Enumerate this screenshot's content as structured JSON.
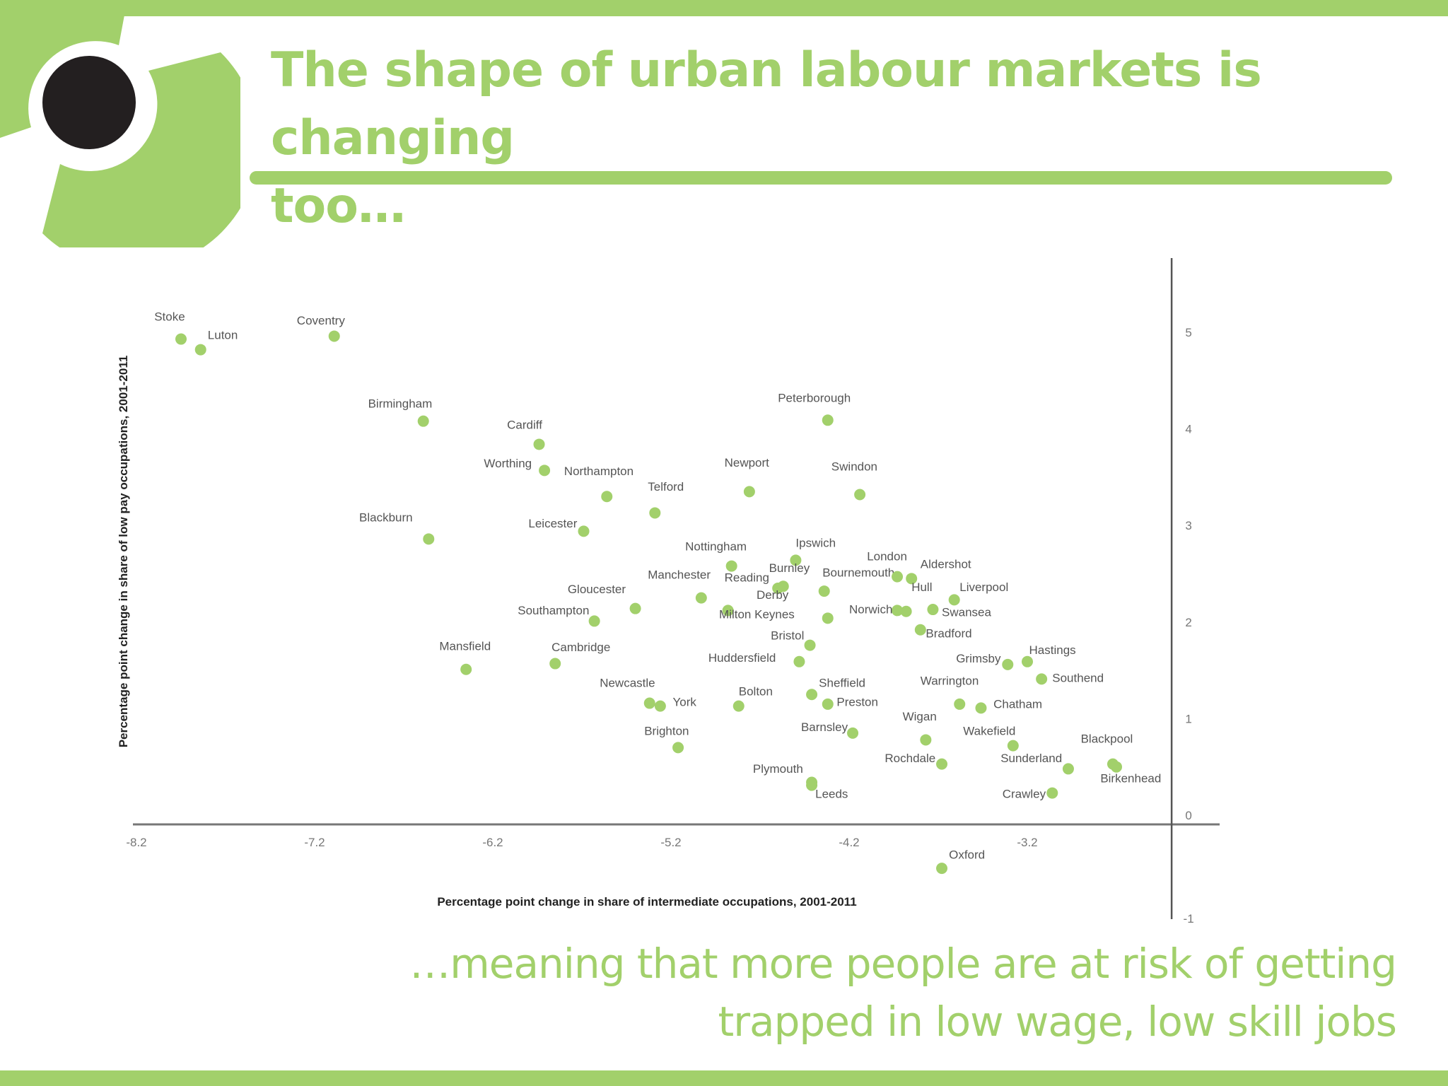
{
  "slide": {
    "title": "The shape of urban labour markets is changing too…",
    "title_line1": "The shape of urban labour markets is changing",
    "title_line2": "too…",
    "caption_line1": "…meaning that more people are at risk of getting",
    "caption_line2": "trapped in low wage, low skill jobs",
    "colors": {
      "accent": "#a2d06b",
      "logo_dot": "#231f20",
      "point": "#a2d06b",
      "axis": "#777777"
    },
    "logo_icon": "circle-target-logo-icon"
  },
  "chart_data": {
    "type": "scatter",
    "title": "",
    "xlabel": "Percentage point change in share of intermediate occupations, 2001-2011",
    "ylabel": "Percentage point change in share of low pay occupations, 2001-2011",
    "xlim": [
      -8.2,
      -2.0
    ],
    "ylim": [
      -1,
      5.5
    ],
    "x_ticks": [
      -8.2,
      -7.2,
      -6.2,
      -5.2,
      -4.2,
      -3.2
    ],
    "x_tick_labels": [
      "-8.2",
      "-7.2",
      "-6.2",
      "-5.2",
      "-4.2",
      "-3.2"
    ],
    "y_ticks": [
      5,
      4,
      3,
      2,
      1,
      0,
      -1
    ],
    "y_tick_labels": [
      "5",
      "4",
      "3",
      "2",
      "1",
      "0",
      "-1"
    ],
    "grid": false,
    "legend": null,
    "y_axis_position_x": -2.39,
    "points": [
      {
        "label": "Stoke",
        "x": -7.95,
        "y": 4.93,
        "lx": -8.1,
        "ly": 5.12
      },
      {
        "label": "Luton",
        "x": -7.84,
        "y": 4.82,
        "lx": -7.8,
        "ly": 4.93
      },
      {
        "label": "Coventry",
        "x": -7.09,
        "y": 4.96,
        "lx": -7.3,
        "ly": 5.08
      },
      {
        "label": "Birmingham",
        "x": -6.59,
        "y": 4.08,
        "lx": -6.9,
        "ly": 4.22
      },
      {
        "label": "Cardiff",
        "x": -5.94,
        "y": 3.84,
        "lx": -6.12,
        "ly": 4.0
      },
      {
        "label": "Worthing",
        "x": -5.91,
        "y": 3.57,
        "lx": -6.25,
        "ly": 3.6
      },
      {
        "label": "Northampton",
        "x": -5.56,
        "y": 3.3,
        "lx": -5.8,
        "ly": 3.52
      },
      {
        "label": "Telford",
        "x": -5.29,
        "y": 3.13,
        "lx": -5.33,
        "ly": 3.36
      },
      {
        "label": "Blackburn",
        "x": -6.56,
        "y": 2.86,
        "lx": -6.95,
        "ly": 3.04
      },
      {
        "label": "Leicester",
        "x": -5.69,
        "y": 2.94,
        "lx": -6.0,
        "ly": 2.98
      },
      {
        "label": "Newport",
        "x": -4.76,
        "y": 3.35,
        "lx": -4.9,
        "ly": 3.61
      },
      {
        "label": "Peterborough",
        "x": -4.32,
        "y": 4.09,
        "lx": -4.6,
        "ly": 4.28
      },
      {
        "label": "Swindon",
        "x": -4.14,
        "y": 3.32,
        "lx": -4.3,
        "ly": 3.57
      },
      {
        "label": "Nottingham",
        "x": -4.86,
        "y": 2.58,
        "lx": -5.12,
        "ly": 2.74
      },
      {
        "label": "Ipswich",
        "x": -4.5,
        "y": 2.64,
        "lx": -4.5,
        "ly": 2.78
      },
      {
        "label": "Burnley",
        "x": -4.57,
        "y": 2.37,
        "lx": -4.65,
        "ly": 2.52
      },
      {
        "label": "Reading",
        "x": -4.6,
        "y": 2.35,
        "lx": -4.9,
        "ly": 2.42
      },
      {
        "label": "Manchester",
        "x": -5.03,
        "y": 2.25,
        "lx": -5.33,
        "ly": 2.45
      },
      {
        "label": "Bournemouth",
        "x": -4.34,
        "y": 2.32,
        "lx": -4.35,
        "ly": 2.47
      },
      {
        "label": "Derby",
        "x": -4.88,
        "y": 2.12,
        "lx": -4.72,
        "ly": 2.24
      },
      {
        "label": "London",
        "x": -3.93,
        "y": 2.47,
        "lx": -4.1,
        "ly": 2.64
      },
      {
        "label": "Aldershot",
        "x": -3.85,
        "y": 2.45,
        "lx": -3.8,
        "ly": 2.56
      },
      {
        "label": "Hull",
        "x": -3.88,
        "y": 2.11,
        "lx": -3.85,
        "ly": 2.32
      },
      {
        "label": "Liverpool",
        "x": -3.61,
        "y": 2.23,
        "lx": -3.58,
        "ly": 2.32
      },
      {
        "label": "Swansea",
        "x": -3.73,
        "y": 2.13,
        "lx": -3.68,
        "ly": 2.06
      },
      {
        "label": "Norwich",
        "x": -3.93,
        "y": 2.12,
        "lx": -4.2,
        "ly": 2.09
      },
      {
        "label": "Milton Keynes",
        "x": -4.32,
        "y": 2.04,
        "lx": -4.93,
        "ly": 2.04
      },
      {
        "label": "Gloucester",
        "x": -5.4,
        "y": 2.14,
        "lx": -5.78,
        "ly": 2.3
      },
      {
        "label": "Southampton",
        "x": -5.63,
        "y": 2.01,
        "lx": -6.06,
        "ly": 2.08
      },
      {
        "label": "Bradford",
        "x": -3.8,
        "y": 1.92,
        "lx": -3.77,
        "ly": 1.84
      },
      {
        "label": "Bristol",
        "x": -4.42,
        "y": 1.76,
        "lx": -4.64,
        "ly": 1.82
      },
      {
        "label": "Huddersfield",
        "x": -4.48,
        "y": 1.59,
        "lx": -4.99,
        "ly": 1.59
      },
      {
        "label": "Mansfield",
        "x": -6.35,
        "y": 1.51,
        "lx": -6.5,
        "ly": 1.71
      },
      {
        "label": "Cambridge",
        "x": -5.85,
        "y": 1.57,
        "lx": -5.87,
        "ly": 1.7
      },
      {
        "label": "Grimsby",
        "x": -3.31,
        "y": 1.56,
        "lx": -3.6,
        "ly": 1.58
      },
      {
        "label": "Hastings",
        "x": -3.2,
        "y": 1.59,
        "lx": -3.19,
        "ly": 1.67
      },
      {
        "label": "Southend",
        "x": -3.12,
        "y": 1.41,
        "lx": -3.06,
        "ly": 1.38
      },
      {
        "label": "Newcastle",
        "x": -5.32,
        "y": 1.16,
        "lx": -5.6,
        "ly": 1.33
      },
      {
        "label": "York",
        "x": -5.26,
        "y": 1.13,
        "lx": -5.19,
        "ly": 1.13
      },
      {
        "label": "Bolton",
        "x": -4.82,
        "y": 1.13,
        "lx": -4.82,
        "ly": 1.24
      },
      {
        "label": "Sheffield",
        "x": -4.41,
        "y": 1.25,
        "lx": -4.37,
        "ly": 1.33
      },
      {
        "label": "Preston",
        "x": -4.32,
        "y": 1.15,
        "lx": -4.27,
        "ly": 1.13
      },
      {
        "label": "Warrington",
        "x": -3.58,
        "y": 1.15,
        "lx": -3.8,
        "ly": 1.35
      },
      {
        "label": "Chatham",
        "x": -3.46,
        "y": 1.11,
        "lx": -3.39,
        "ly": 1.11
      },
      {
        "label": "Barnsley",
        "x": -4.18,
        "y": 0.85,
        "lx": -4.47,
        "ly": 0.87
      },
      {
        "label": "Wigan",
        "x": -3.77,
        "y": 0.78,
        "lx": -3.9,
        "ly": 0.98
      },
      {
        "label": "Wakefield",
        "x": -3.28,
        "y": 0.72,
        "lx": -3.56,
        "ly": 0.83
      },
      {
        "label": "Brighton",
        "x": -5.16,
        "y": 0.7,
        "lx": -5.35,
        "ly": 0.83
      },
      {
        "label": "Rochdale",
        "x": -3.68,
        "y": 0.53,
        "lx": -4.0,
        "ly": 0.55
      },
      {
        "label": "Sunderland",
        "x": -2.97,
        "y": 0.48,
        "lx": -3.35,
        "ly": 0.55
      },
      {
        "label": "Blackpool",
        "x": -2.72,
        "y": 0.53,
        "lx": -2.9,
        "ly": 0.75
      },
      {
        "label": "Birkenhead",
        "x": -2.7,
        "y": 0.5,
        "lx": -2.79,
        "ly": 0.34
      },
      {
        "label": "Plymouth",
        "x": -4.41,
        "y": 0.34,
        "lx": -4.74,
        "ly": 0.44
      },
      {
        "label": "Leeds",
        "x": -4.41,
        "y": 0.31,
        "lx": -4.39,
        "ly": 0.18
      },
      {
        "label": "Crawley",
        "x": -3.06,
        "y": 0.23,
        "lx": -3.34,
        "ly": 0.18
      },
      {
        "label": "Oxford",
        "x": -3.68,
        "y": -0.55,
        "lx": -3.64,
        "ly": -0.45
      }
    ]
  }
}
